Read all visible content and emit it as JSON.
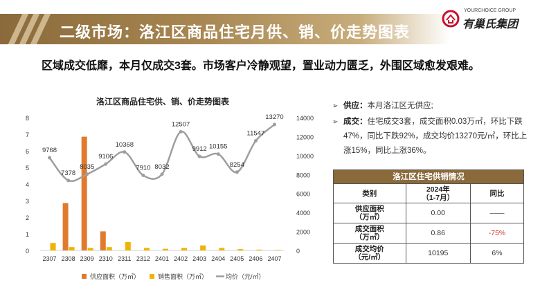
{
  "header": {
    "title": "二级市场：洛江区商品住宅月供、销、价走势图表"
  },
  "logo": {
    "en": "YOURCHOICE GROUP",
    "cn": "有巢氏集团"
  },
  "subtitle": "区域成交低靡，本月仅成交3套。市场客户冷静观望，置业动力匮乏，外围区域愈发艰难。",
  "chart_data": {
    "type": "bar+line",
    "title": "洛江区商品住宅供、销、价走势图表",
    "categories": [
      "2307",
      "2308",
      "2309",
      "2310",
      "2311",
      "2312",
      "2401",
      "2402",
      "2403",
      "2404",
      "2405",
      "2406",
      "2407"
    ],
    "series": [
      {
        "name": "供应面积（万㎡）",
        "type": "bar",
        "axis": "left",
        "color": "#e07b2e",
        "values": [
          0,
          2.85,
          6.85,
          1.15,
          0,
          0,
          0,
          0,
          0,
          0,
          0,
          0,
          0
        ]
      },
      {
        "name": "销售面积（万㎡）",
        "type": "bar",
        "axis": "left",
        "color": "#f0b400",
        "values": [
          0.45,
          0.2,
          0.15,
          0.2,
          0.5,
          0.15,
          0.1,
          0.15,
          0.3,
          0.15,
          0.08,
          0.05,
          0.03
        ]
      },
      {
        "name": "均价（元/㎡）",
        "type": "line",
        "axis": "right",
        "color": "#9e9e9e",
        "values": [
          9768,
          7378,
          8035,
          9106,
          10368,
          7910,
          8032,
          12507,
          9912,
          10155,
          8254,
          11547,
          13270
        ]
      }
    ],
    "ylim_left": [
      0,
      8
    ],
    "ylim_right": [
      0,
      14000
    ],
    "yticks_left": [
      "0",
      "1",
      "2",
      "3",
      "4",
      "5",
      "6",
      "7",
      "8"
    ],
    "yticks_right": [
      "0",
      "2000",
      "4000",
      "6000",
      "8000",
      "10000",
      "12000",
      "14000"
    ],
    "legend_position": "bottom"
  },
  "bullets": [
    {
      "label": "供应：",
      "text": "本月洛江区无供应;"
    },
    {
      "label": "成交：",
      "text": "住宅成交3套，成交面积0.03万㎡，环比下跌47%，同比下跌92%，成交均价13270元/㎡，环比上涨15%，同比上涨36%。"
    }
  ],
  "table": {
    "title": "洛江区住宅供销情况",
    "headers": [
      "类别",
      "2024年\n（1-7月）",
      "同比"
    ],
    "rows": [
      {
        "label": "供应面积\n（万㎡）",
        "value": "0.00",
        "yoy": "——"
      },
      {
        "label": "成交面积\n（万㎡）",
        "value": "0.86",
        "yoy": "-75%"
      },
      {
        "label": "成交均价\n（元/㎡）",
        "value": "10195",
        "yoy": "6%"
      }
    ]
  }
}
